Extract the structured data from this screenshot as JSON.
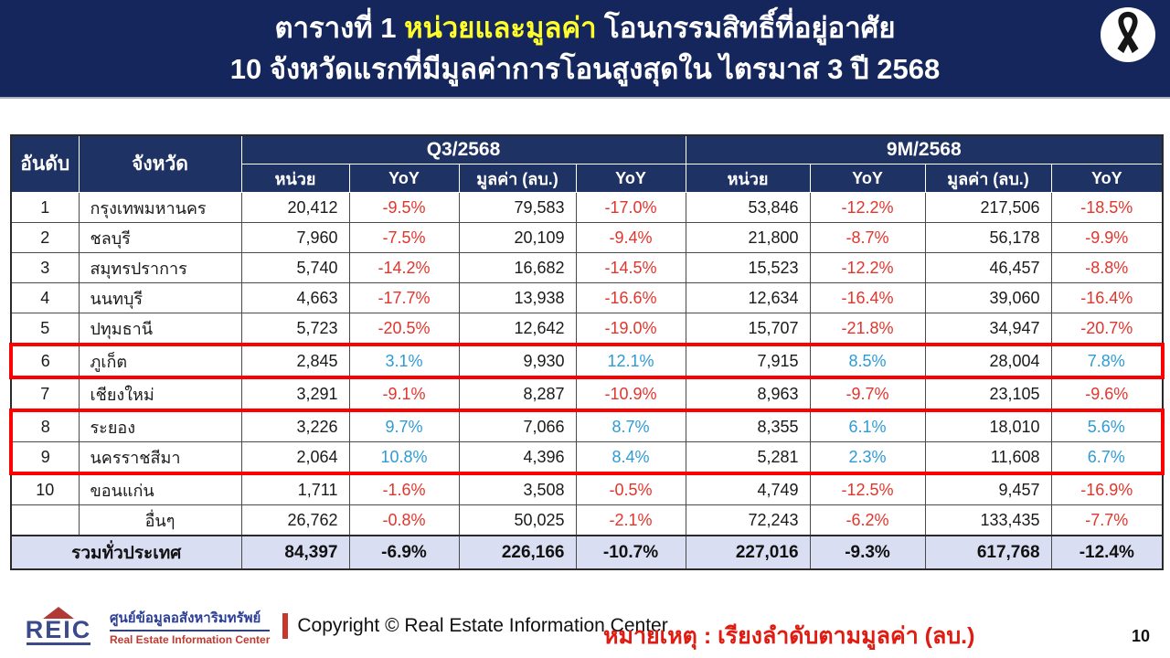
{
  "title": {
    "line1_prefix": "ตารางที่ 1 ",
    "line1_highlight": "หน่วยและมูลค่า",
    "line1_suffix": " โอนกรรมสิทธิ์ที่อยู่อาศัย",
    "line2": "10 จังหวัดแรกที่มีมูลค่าการโอนสูงสุดใน ไตรมาส 3 ปี 2568"
  },
  "table": {
    "headers": {
      "rank": "อันดับ",
      "province": "จังหวัด",
      "group1": "Q3/2568",
      "group2": "9M/2568",
      "sub": [
        "หน่วย",
        "YoY",
        "มูลค่า (ลบ.)",
        "YoY"
      ]
    },
    "rows": [
      {
        "rank": "1",
        "province": "กรุงเทพมหานคร",
        "q3_units": "20,412",
        "q3_units_yoy": "-9.5%",
        "q3_value": "79,583",
        "q3_value_yoy": "-17.0%",
        "m9_units": "53,846",
        "m9_units_yoy": "-12.2%",
        "m9_value": "217,506",
        "m9_value_yoy": "-18.5%",
        "highlighted": false
      },
      {
        "rank": "2",
        "province": "ชลบุรี",
        "q3_units": "7,960",
        "q3_units_yoy": "-7.5%",
        "q3_value": "20,109",
        "q3_value_yoy": "-9.4%",
        "m9_units": "21,800",
        "m9_units_yoy": "-8.7%",
        "m9_value": "56,178",
        "m9_value_yoy": "-9.9%",
        "highlighted": false
      },
      {
        "rank": "3",
        "province": "สมุทรปราการ",
        "q3_units": "5,740",
        "q3_units_yoy": "-14.2%",
        "q3_value": "16,682",
        "q3_value_yoy": "-14.5%",
        "m9_units": "15,523",
        "m9_units_yoy": "-12.2%",
        "m9_value": "46,457",
        "m9_value_yoy": "-8.8%",
        "highlighted": false
      },
      {
        "rank": "4",
        "province": "นนทบุรี",
        "q3_units": "4,663",
        "q3_units_yoy": "-17.7%",
        "q3_value": "13,938",
        "q3_value_yoy": "-16.6%",
        "m9_units": "12,634",
        "m9_units_yoy": "-16.4%",
        "m9_value": "39,060",
        "m9_value_yoy": "-16.4%",
        "highlighted": false
      },
      {
        "rank": "5",
        "province": "ปทุมธานี",
        "q3_units": "5,723",
        "q3_units_yoy": "-20.5%",
        "q3_value": "12,642",
        "q3_value_yoy": "-19.0%",
        "m9_units": "15,707",
        "m9_units_yoy": "-21.8%",
        "m9_value": "34,947",
        "m9_value_yoy": "-20.7%",
        "highlighted": false
      },
      {
        "rank": "6",
        "province": "ภูเก็ต",
        "q3_units": "2,845",
        "q3_units_yoy": "3.1%",
        "q3_value": "9,930",
        "q3_value_yoy": "12.1%",
        "m9_units": "7,915",
        "m9_units_yoy": "8.5%",
        "m9_value": "28,004",
        "m9_value_yoy": "7.8%",
        "highlighted": true
      },
      {
        "rank": "7",
        "province": "เชียงใหม่",
        "q3_units": "3,291",
        "q3_units_yoy": "-9.1%",
        "q3_value": "8,287",
        "q3_value_yoy": "-10.9%",
        "m9_units": "8,963",
        "m9_units_yoy": "-9.7%",
        "m9_value": "23,105",
        "m9_value_yoy": "-9.6%",
        "highlighted": false
      },
      {
        "rank": "8",
        "province": "ระยอง",
        "q3_units": "3,226",
        "q3_units_yoy": "9.7%",
        "q3_value": "7,066",
        "q3_value_yoy": "8.7%",
        "m9_units": "8,355",
        "m9_units_yoy": "6.1%",
        "m9_value": "18,010",
        "m9_value_yoy": "5.6%",
        "highlighted": true
      },
      {
        "rank": "9",
        "province": "นครราชสีมา",
        "q3_units": "2,064",
        "q3_units_yoy": "10.8%",
        "q3_value": "4,396",
        "q3_value_yoy": "8.4%",
        "m9_units": "5,281",
        "m9_units_yoy": "2.3%",
        "m9_value": "11,608",
        "m9_value_yoy": "6.7%",
        "highlighted": true
      },
      {
        "rank": "10",
        "province": "ขอนแก่น",
        "q3_units": "1,711",
        "q3_units_yoy": "-1.6%",
        "q3_value": "3,508",
        "q3_value_yoy": "-0.5%",
        "m9_units": "4,749",
        "m9_units_yoy": "-12.5%",
        "m9_value": "9,457",
        "m9_value_yoy": "-16.9%",
        "highlighted": false
      },
      {
        "rank": "",
        "province": "อื่นๆ",
        "q3_units": "26,762",
        "q3_units_yoy": "-0.8%",
        "q3_value": "50,025",
        "q3_value_yoy": "-2.1%",
        "m9_units": "72,243",
        "m9_units_yoy": "-6.2%",
        "m9_value": "133,435",
        "m9_value_yoy": "-7.7%",
        "highlighted": false
      }
    ],
    "total": {
      "label": "รวมทั่วประเทศ",
      "q3_units": "84,397",
      "q3_units_yoy": "-6.9%",
      "q3_value": "226,166",
      "q3_value_yoy": "-10.7%",
      "m9_units": "227,016",
      "m9_units_yoy": "-9.3%",
      "m9_value": "617,768",
      "m9_value_yoy": "-12.4%"
    }
  },
  "footer": {
    "logo_text": "REIC",
    "org_thai": "ศูนย์ข้อมูลอสังหาริมทรัพย์",
    "org_english": "Real Estate Information Center",
    "copyright": "Copyright © Real Estate Information Center",
    "note": "หมายเหตุ : เรียงลำดับตามมูลค่า (ลบ.)",
    "page_number": "10"
  },
  "colors": {
    "banner_navy": "#14265C",
    "table_header_navy": "#1E3263",
    "title_highlight_yellow": "#FFFF29",
    "negative_red": "#E2352C",
    "positive_blue": "#2E9BD5",
    "highlight_box_red": "#FF0000",
    "total_row_bg": "#D9DEF3",
    "note_red": "#E01B12"
  }
}
